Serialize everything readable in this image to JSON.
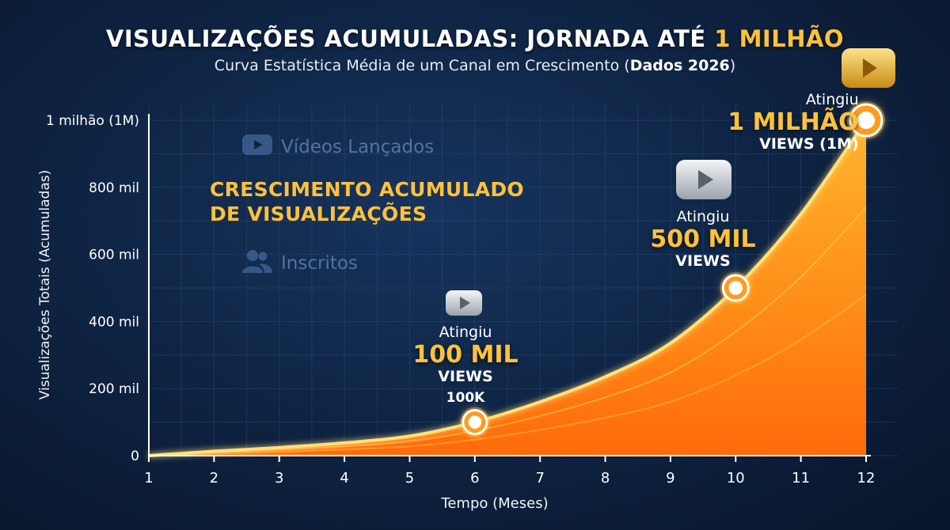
{
  "header": {
    "title_main": "VISUALIZAÇÕES ACUMULADAS: JORNADA ATÉ",
    "title_highlight": "1 MILHÃO",
    "subtitle_main": "Curva Estatística Média de um Canal em Crescimento (",
    "subtitle_bold": "Dados 2026",
    "subtitle_end": ")"
  },
  "legend": {
    "videos_label": "Vídeos Lançados",
    "subscribers_label": "Inscritos",
    "growth_line1": "CRESCIMENTO ACUMULADO",
    "growth_line2": "DE VISUALIZAÇÕES"
  },
  "annotations": [
    {
      "line1": "Atingiu",
      "line2": "100 MIL",
      "line3": "VIEWS",
      "line4": "100K"
    },
    {
      "line1": "Atingiu",
      "line2": "500 MIL",
      "line3": "VIEWS",
      "line4": ""
    },
    {
      "line1": "Atingiu",
      "line2": "1 MILHÃO",
      "line3": "VIEWS (1M)",
      "line4": ""
    }
  ],
  "colors": {
    "accent_gold": "#ffc23a",
    "area_orange": "#ff7a10",
    "background": "#0f2545"
  },
  "chart_data": {
    "type": "area",
    "title": "VISUALIZAÇÕES ACUMULADAS: JORNADA ATÉ 1 MILHÃO",
    "subtitle": "Curva Estatística Média de um Canal em Crescimento (Dados 2026)",
    "xlabel": "Tempo (Meses)",
    "ylabel": "Visualizações Totais (Acumuladas)",
    "x": [
      1,
      2,
      3,
      4,
      5,
      6,
      7,
      8,
      9,
      10,
      11,
      12
    ],
    "xlim": [
      1,
      12
    ],
    "ylim": [
      0,
      1000000
    ],
    "yticks": [
      0,
      200000,
      400000,
      600000,
      800000,
      1000000
    ],
    "ytick_labels": [
      "0",
      "200 mil",
      "400 mil",
      "600 mil",
      "800 mil",
      "1 milhão (1M)"
    ],
    "grid": true,
    "series": [
      {
        "values": [
          0,
          13000,
          24000,
          38000,
          58000,
          100000,
          160000,
          235000,
          335000,
          500000,
          720000,
          1000000
        ]
      }
    ],
    "milestones": [
      {
        "x": 6,
        "y": 100000,
        "label": "100 MIL"
      },
      {
        "x": 10,
        "y": 500000,
        "label": "500 MIL"
      },
      {
        "x": 12,
        "y": 1000000,
        "label": "1 MILHÃO"
      }
    ]
  }
}
